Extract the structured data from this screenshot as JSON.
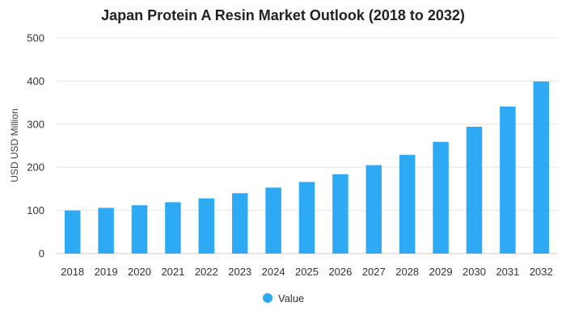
{
  "chart_data": {
    "type": "bar",
    "title": "Japan Protein A Resin Market Outlook (2018 to 2032)",
    "categories": [
      "2018",
      "2019",
      "2020",
      "2021",
      "2022",
      "2023",
      "2024",
      "2025",
      "2026",
      "2027",
      "2028",
      "2029",
      "2030",
      "2031",
      "2032"
    ],
    "series": [
      {
        "name": "Value",
        "color": "#2eaaf5",
        "values": [
          100,
          106,
          112,
          119,
          128,
          140,
          153,
          166,
          184,
          205,
          229,
          259,
          294,
          341,
          399
        ]
      }
    ],
    "xlabel": "",
    "ylabel": "USD USD Million",
    "ylim": [
      0,
      500
    ],
    "yticks": [
      0,
      100,
      200,
      300,
      400,
      500
    ],
    "grid": true,
    "legend_position": "bottom-center"
  }
}
